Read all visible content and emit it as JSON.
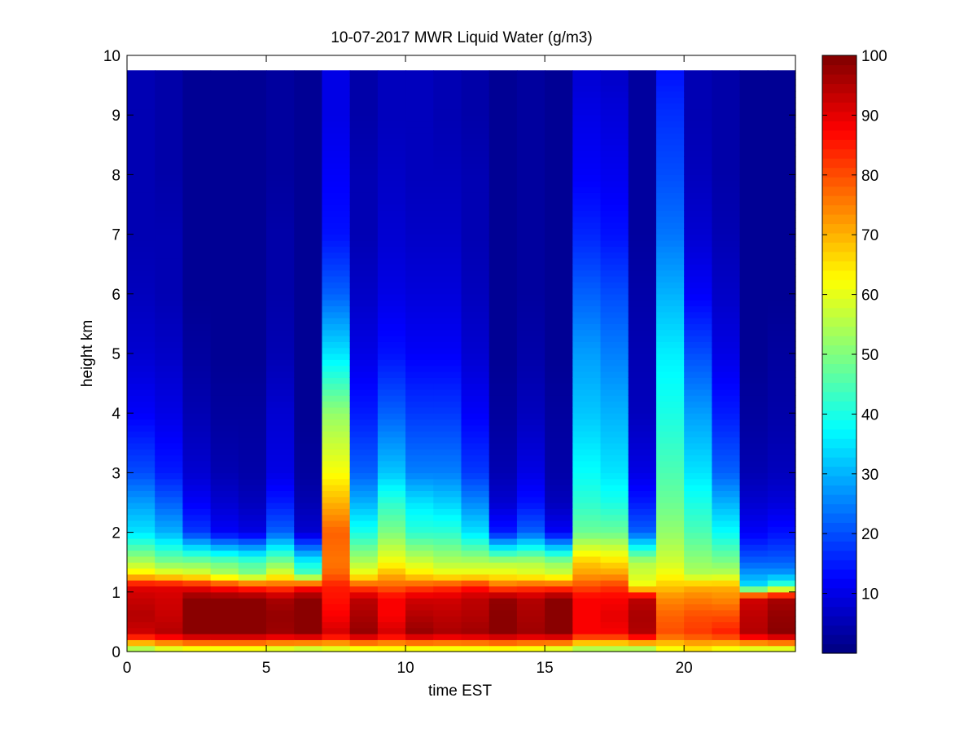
{
  "chart_data": {
    "type": "heatmap",
    "title": "10-07-2017 MWR Liquid Water (g/m3)",
    "xlabel": "time EST",
    "ylabel": "height km",
    "xlim": [
      0,
      24
    ],
    "ylim": [
      0,
      10
    ],
    "x_ticks": [
      0,
      5,
      10,
      15,
      20
    ],
    "y_ticks": [
      0,
      1,
      2,
      3,
      4,
      5,
      6,
      7,
      8,
      9,
      10
    ],
    "colormap": "jet",
    "colorbar": {
      "min": 0,
      "max": 100,
      "ticks": [
        10,
        20,
        30,
        40,
        50,
        60,
        70,
        80,
        90,
        100
      ]
    },
    "time_hours": [
      0,
      1,
      2,
      3,
      4,
      5,
      6,
      7,
      8,
      9,
      10,
      11,
      12,
      13,
      14,
      15,
      16,
      17,
      18,
      19,
      20,
      21,
      22,
      23
    ],
    "profile_heights_km": [
      0.05,
      0.3,
      0.6,
      0.9,
      1.1,
      1.3,
      1.5,
      2.0,
      2.5,
      3.0,
      4.0,
      5.0,
      6.0,
      7.0,
      8.0,
      9.0,
      9.75
    ],
    "values": [
      [
        55,
        92,
        95,
        93,
        90,
        65,
        55,
        35,
        28,
        20,
        12,
        8,
        6,
        5,
        5,
        5,
        5
      ],
      [
        60,
        95,
        93,
        92,
        90,
        62,
        50,
        30,
        22,
        15,
        10,
        7,
        5,
        5,
        4,
        4,
        4
      ],
      [
        62,
        99,
        99,
        99,
        88,
        60,
        50,
        18,
        12,
        8,
        5,
        3,
        2,
        2,
        2,
        2,
        2
      ],
      [
        62,
        99,
        99,
        99,
        85,
        55,
        48,
        12,
        8,
        5,
        3,
        2,
        2,
        2,
        2,
        2,
        2
      ],
      [
        62,
        99,
        99,
        99,
        82,
        50,
        45,
        10,
        6,
        4,
        3,
        2,
        2,
        2,
        2,
        2,
        2
      ],
      [
        60,
        97,
        98,
        96,
        80,
        60,
        50,
        22,
        15,
        10,
        8,
        5,
        4,
        4,
        3,
        3,
        3
      ],
      [
        58,
        99,
        99,
        99,
        85,
        45,
        38,
        8,
        5,
        3,
        2,
        2,
        2,
        2,
        2,
        2,
        2
      ],
      [
        60,
        92,
        88,
        86,
        85,
        78,
        76,
        78,
        70,
        62,
        52,
        35,
        22,
        14,
        12,
        10,
        10
      ],
      [
        62,
        98,
        96,
        94,
        80,
        62,
        55,
        40,
        30,
        22,
        15,
        10,
        7,
        5,
        5,
        4,
        4
      ],
      [
        63,
        92,
        88,
        88,
        78,
        70,
        62,
        50,
        42,
        32,
        22,
        14,
        10,
        8,
        7,
        6,
        6
      ],
      [
        62,
        98,
        95,
        92,
        80,
        65,
        58,
        42,
        35,
        25,
        18,
        12,
        9,
        7,
        6,
        6,
        6
      ],
      [
        62,
        96,
        94,
        92,
        82,
        62,
        55,
        42,
        33,
        25,
        18,
        12,
        9,
        7,
        6,
        5,
        5
      ],
      [
        62,
        97,
        95,
        94,
        85,
        62,
        55,
        35,
        26,
        18,
        12,
        8,
        6,
        5,
        5,
        4,
        4
      ],
      [
        63,
        99,
        99,
        98,
        78,
        62,
        55,
        15,
        8,
        5,
        3,
        2,
        2,
        2,
        2,
        2,
        2
      ],
      [
        62,
        97,
        96,
        95,
        80,
        60,
        55,
        22,
        14,
        10,
        6,
        4,
        3,
        3,
        3,
        3,
        3
      ],
      [
        60,
        99,
        99,
        99,
        80,
        58,
        52,
        12,
        6,
        4,
        3,
        2,
        2,
        2,
        2,
        2,
        2
      ],
      [
        55,
        88,
        88,
        88,
        80,
        72,
        68,
        48,
        42,
        38,
        32,
        28,
        22,
        16,
        12,
        10,
        8
      ],
      [
        55,
        88,
        90,
        88,
        82,
        72,
        66,
        48,
        40,
        35,
        30,
        25,
        20,
        14,
        11,
        9,
        7
      ],
      [
        55,
        95,
        96,
        94,
        62,
        58,
        55,
        22,
        15,
        10,
        6,
        5,
        4,
        3,
        3,
        3,
        3
      ],
      [
        62,
        80,
        78,
        74,
        68,
        62,
        58,
        52,
        48,
        45,
        40,
        36,
        30,
        24,
        20,
        17,
        14
      ],
      [
        65,
        82,
        80,
        75,
        70,
        55,
        52,
        45,
        40,
        35,
        28,
        20,
        12,
        8,
        6,
        5,
        5
      ],
      [
        62,
        85,
        80,
        74,
        70,
        56,
        50,
        38,
        30,
        22,
        15,
        10,
        7,
        5,
        4,
        4,
        4
      ],
      [
        60,
        95,
        94,
        92,
        35,
        28,
        22,
        12,
        8,
        5,
        3,
        2,
        2,
        2,
        2,
        2,
        2
      ],
      [
        60,
        99,
        98,
        96,
        45,
        28,
        22,
        14,
        9,
        6,
        4,
        3,
        2,
        2,
        2,
        2,
        2
      ]
    ]
  }
}
